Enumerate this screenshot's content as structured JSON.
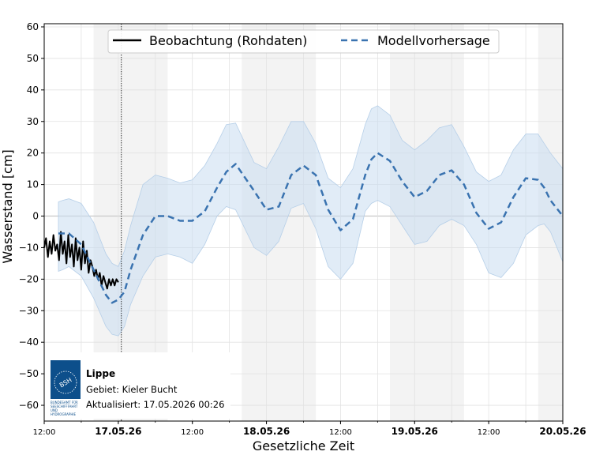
{
  "chart_data": {
    "type": "line",
    "title": "",
    "xlabel": "Gesetzliche Zeit",
    "ylabel": "Wasserstand [cm]",
    "ylim": [
      -65,
      61
    ],
    "yticks": [
      60,
      50,
      40,
      30,
      20,
      10,
      0,
      -10,
      -20,
      -30,
      -40,
      -50,
      -60
    ],
    "x_range_hours": [
      0,
      84
    ],
    "xticks": [
      {
        "label": "12:00",
        "hour": 0,
        "bold": false
      },
      {
        "label": "17.05.26",
        "hour": 12,
        "bold": true
      },
      {
        "label": "12:00",
        "hour": 24,
        "bold": false
      },
      {
        "label": "18.05.26",
        "hour": 36,
        "bold": true
      },
      {
        "label": "12:00",
        "hour": 48,
        "bold": false
      },
      {
        "label": "19.05.26",
        "hour": 60,
        "bold": true
      },
      {
        "label": "12:00",
        "hour": 72,
        "bold": false
      },
      {
        "label": "20.05.26",
        "hour": 84,
        "bold": true
      }
    ],
    "night_shading_hours": [
      [
        8,
        20
      ],
      [
        32,
        44
      ],
      [
        56,
        68
      ],
      [
        80,
        84
      ]
    ],
    "now_marker_hour": 12.5,
    "grid": true,
    "legend_position": "top-center",
    "series": [
      {
        "name": "Beobachtung (Rohdaten)",
        "style": "solid",
        "color": "#000000",
        "x": [
          0,
          0.3,
          0.6,
          0.9,
          1.2,
          1.5,
          1.8,
          2.1,
          2.4,
          2.7,
          3.0,
          3.3,
          3.6,
          3.9,
          4.2,
          4.5,
          4.8,
          5.1,
          5.4,
          5.7,
          6.0,
          6.3,
          6.6,
          6.9,
          7.2,
          7.5,
          7.8,
          8.1,
          8.4,
          8.7,
          9.0,
          9.3,
          9.6,
          9.9,
          10.2,
          10.5,
          10.8,
          11.1,
          11.4,
          11.7,
          12.0
        ],
        "y": [
          -10,
          -7,
          -13,
          -8,
          -12,
          -6,
          -11,
          -9,
          -14,
          -5,
          -12,
          -8,
          -15,
          -6,
          -13,
          -9,
          -16,
          -7,
          -14,
          -10,
          -17,
          -8,
          -15,
          -11,
          -18,
          -14,
          -16,
          -19,
          -17,
          -20,
          -18,
          -22,
          -19,
          -21,
          -23,
          -20,
          -22,
          -20,
          -22,
          -20,
          -21
        ]
      },
      {
        "name": "Modellvorhersage",
        "style": "dashed",
        "color": "#3a73b0",
        "x": [
          2.3,
          4,
          6,
          8,
          10,
          11,
          12,
          13,
          14,
          16,
          18,
          20,
          22,
          24,
          26,
          28,
          29.5,
          31,
          34,
          36,
          38,
          40,
          42,
          44,
          46,
          48,
          50,
          52,
          53,
          54,
          56,
          58,
          60,
          62,
          64,
          66,
          68,
          70,
          72,
          74,
          76,
          78,
          80,
          81,
          82,
          84
        ],
        "y": [
          -5.5,
          -5.5,
          -9,
          -17,
          -25,
          -27.5,
          -26.5,
          -24,
          -17,
          -6,
          0,
          0,
          -1.5,
          -1.5,
          1.5,
          9,
          14,
          16.5,
          8,
          2,
          3,
          13,
          16,
          13,
          2,
          -4.5,
          -1,
          13,
          18,
          20,
          17.5,
          11,
          6,
          8,
          13,
          14.5,
          10,
          1,
          -4,
          -2,
          6,
          12,
          11.5,
          9,
          5,
          0
        ]
      }
    ],
    "band": {
      "color": "#c9dcf0",
      "x": [
        2.3,
        3,
        4,
        6,
        8,
        10,
        11,
        12,
        13,
        14,
        16,
        18,
        20,
        22,
        24,
        26,
        28,
        29.5,
        31,
        34,
        36,
        38,
        40,
        42,
        44,
        46,
        48,
        50,
        52,
        53,
        54,
        56,
        58,
        60,
        62,
        64,
        66,
        68,
        70,
        72,
        74,
        76,
        78,
        80,
        81,
        82,
        84
      ],
      "upper": [
        4.5,
        5,
        5.5,
        4,
        -2,
        -12,
        -15,
        -16,
        -11,
        -3,
        10,
        13,
        12,
        10.5,
        11.5,
        16,
        23,
        29,
        29.5,
        17,
        15,
        22,
        30,
        30,
        23,
        12,
        9,
        15,
        29,
        34,
        35,
        32,
        24,
        21,
        24,
        28,
        29,
        22,
        14,
        11,
        13,
        21,
        26,
        26,
        23,
        20,
        15
      ],
      "lower": [
        -17.5,
        -17,
        -16,
        -19,
        -26,
        -35,
        -37.5,
        -38,
        -35,
        -28,
        -19,
        -13,
        -12,
        -13,
        -15,
        -9,
        0,
        3,
        2,
        -10,
        -12.5,
        -8,
        2.5,
        4,
        -4,
        -16,
        -20,
        -15,
        1.5,
        4,
        5,
        3,
        -3,
        -9,
        -8,
        -3,
        -1,
        -3,
        -9,
        -18,
        -19.5,
        -15,
        -6,
        -3,
        -2.5,
        -5,
        -14.5
      ]
    },
    "legend": [
      {
        "label": "Beobachtung (Rohdaten)",
        "style": "solid"
      },
      {
        "label": "Modellvorhersage",
        "style": "dashed"
      }
    ]
  },
  "info": {
    "station": "Lippe",
    "area": "Gebiet: Kieler Bucht",
    "updated": "Aktualisiert: 17.05.2026 00:26",
    "logo_text": "BSH",
    "logo_subtext": [
      "BUNDESAMT FÜR",
      "SEESCHIFFFAHRT",
      "UND",
      "HYDROGRAPHIE"
    ]
  }
}
